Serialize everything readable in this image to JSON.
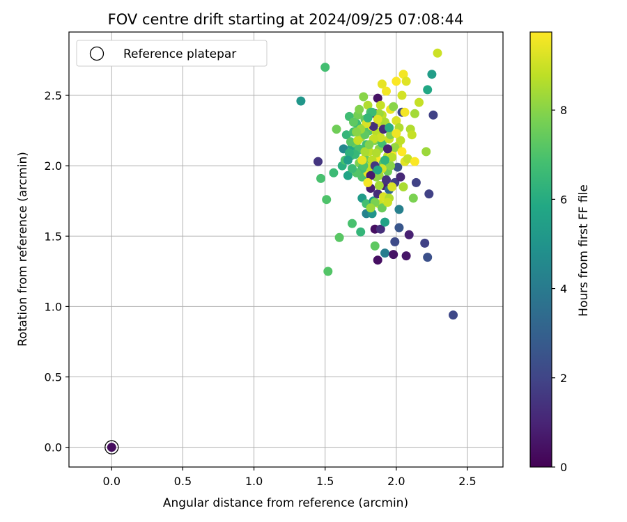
{
  "chart_data": {
    "type": "scatter",
    "title": "FOV centre drift starting at 2024/09/25 07:08:44",
    "xlabel": "Angular distance from reference (arcmin)",
    "ylabel": "Rotation from reference (arcmin)",
    "xlim": [
      -0.3,
      2.75
    ],
    "ylim": [
      -0.14,
      2.95
    ],
    "xticks": [
      0.0,
      0.5,
      1.0,
      1.5,
      2.0,
      2.5
    ],
    "yticks": [
      0.0,
      0.5,
      1.0,
      1.5,
      2.0,
      2.5
    ],
    "grid": true,
    "legend": {
      "position": "top-left",
      "entries": [
        "Reference platepar"
      ]
    },
    "colorbar": {
      "label": "Hours from first FF file",
      "colormap": "viridis",
      "range": [
        0,
        9.75
      ],
      "ticks": [
        0,
        2,
        4,
        6,
        8
      ]
    },
    "reference_point": {
      "x": 0.0,
      "y": 0.0,
      "c": 0.3
    },
    "points": [
      [
        1.33,
        2.46,
        5.1
      ],
      [
        1.5,
        2.7,
        6.8
      ],
      [
        1.45,
        2.03,
        1.5
      ],
      [
        1.47,
        1.91,
        6.9
      ],
      [
        1.51,
        1.76,
        7.0
      ],
      [
        1.52,
        1.25,
        7.1
      ],
      [
        1.56,
        1.95,
        6.6
      ],
      [
        1.6,
        1.49,
        7.2
      ],
      [
        1.58,
        2.26,
        7.6
      ],
      [
        1.62,
        2.0,
        6.1
      ],
      [
        1.63,
        2.12,
        4.5
      ],
      [
        1.64,
        2.04,
        6.9
      ],
      [
        1.65,
        2.22,
        6.4
      ],
      [
        1.66,
        1.93,
        5.7
      ],
      [
        1.67,
        2.35,
        6.7
      ],
      [
        1.68,
        2.07,
        6.3
      ],
      [
        1.69,
        2.14,
        5.8
      ],
      [
        1.69,
        1.59,
        6.9
      ],
      [
        1.7,
        2.24,
        6.8
      ],
      [
        1.71,
        2.16,
        7.4
      ],
      [
        1.72,
        2.3,
        6.6
      ],
      [
        1.73,
        2.11,
        6.2
      ],
      [
        1.73,
        2.36,
        7.7
      ],
      [
        1.74,
        2.4,
        7.9
      ],
      [
        1.74,
        2.02,
        7.8
      ],
      [
        1.75,
        2.2,
        8.4
      ],
      [
        1.75,
        1.53,
        6.4
      ],
      [
        1.76,
        1.92,
        7.0
      ],
      [
        1.76,
        1.77,
        5.3
      ],
      [
        1.77,
        2.49,
        8.0
      ],
      [
        1.77,
        2.27,
        8.1
      ],
      [
        1.78,
        2.05,
        7.5
      ],
      [
        1.78,
        2.33,
        7.4
      ],
      [
        1.79,
        1.73,
        6.8
      ],
      [
        1.79,
        2.15,
        6.7
      ],
      [
        1.79,
        1.66,
        4.3
      ],
      [
        1.8,
        2.43,
        8.6
      ],
      [
        1.8,
        1.95,
        9.4
      ],
      [
        1.81,
        2.1,
        8.8
      ],
      [
        1.81,
        2.25,
        7.1
      ],
      [
        1.82,
        1.84,
        0.8
      ],
      [
        1.82,
        2.38,
        6.9
      ],
      [
        1.82,
        2.0,
        7.0
      ],
      [
        1.83,
        1.66,
        5.0
      ],
      [
        1.83,
        2.28,
        9.5
      ],
      [
        1.84,
        1.75,
        5.3
      ],
      [
        1.84,
        1.95,
        5.6
      ],
      [
        1.85,
        2.37,
        1.0
      ],
      [
        1.85,
        2.18,
        7.8
      ],
      [
        1.85,
        1.55,
        0.4
      ],
      [
        1.85,
        1.43,
        7.3
      ],
      [
        1.86,
        2.05,
        9.7
      ],
      [
        1.86,
        2.24,
        8.7
      ],
      [
        1.87,
        1.8,
        1.2
      ],
      [
        1.87,
        1.33,
        0.4
      ],
      [
        1.87,
        2.48,
        0.5
      ],
      [
        1.88,
        2.12,
        8.0
      ],
      [
        1.88,
        1.73,
        9.0
      ],
      [
        1.88,
        1.93,
        8.3
      ],
      [
        1.89,
        2.3,
        9.1
      ],
      [
        1.89,
        1.55,
        1.3
      ],
      [
        1.9,
        2.58,
        9.4
      ],
      [
        1.9,
        2.36,
        8.8
      ],
      [
        1.9,
        2.16,
        6.8
      ],
      [
        1.91,
        1.86,
        0.9
      ],
      [
        1.91,
        2.02,
        7.2
      ],
      [
        1.91,
        1.78,
        9.2
      ],
      [
        1.92,
        1.6,
        5.6
      ],
      [
        1.92,
        1.38,
        4.1
      ],
      [
        1.93,
        2.53,
        9.6
      ],
      [
        1.93,
        2.29,
        9.3
      ],
      [
        1.94,
        2.07,
        8.8
      ],
      [
        1.94,
        1.96,
        7.6
      ],
      [
        1.95,
        1.83,
        3.2
      ],
      [
        1.95,
        1.77,
        8.6
      ],
      [
        1.95,
        2.19,
        9.0
      ],
      [
        1.96,
        2.4,
        9.5
      ],
      [
        1.97,
        2.08,
        9.8
      ],
      [
        1.98,
        1.37,
        0.5
      ],
      [
        1.98,
        2.42,
        8.0
      ],
      [
        1.99,
        1.46,
        2.2
      ],
      [
        1.99,
        1.88,
        1.8
      ],
      [
        2.0,
        2.6,
        9.7
      ],
      [
        2.0,
        2.32,
        9.2
      ],
      [
        2.01,
        1.99,
        2.5
      ],
      [
        2.01,
        2.14,
        9.0
      ],
      [
        2.02,
        2.27,
        8.6
      ],
      [
        2.02,
        1.69,
        4.2
      ],
      [
        2.02,
        1.56,
        2.6
      ],
      [
        2.03,
        1.92,
        1.1
      ],
      [
        2.03,
        2.18,
        8.8
      ],
      [
        2.04,
        2.5,
        9.1
      ],
      [
        2.04,
        2.38,
        2.1
      ],
      [
        2.05,
        2.65,
        9.6
      ],
      [
        2.05,
        1.85,
        8.5
      ],
      [
        2.06,
        2.03,
        9.3
      ],
      [
        2.07,
        1.36,
        0.6
      ],
      [
        2.07,
        2.6,
        9.3
      ],
      [
        2.08,
        2.05,
        8.9
      ],
      [
        2.09,
        1.51,
        0.9
      ],
      [
        2.1,
        2.26,
        8.6
      ],
      [
        2.11,
        2.22,
        8.9
      ],
      [
        2.12,
        1.77,
        7.8
      ],
      [
        2.13,
        2.37,
        8.4
      ],
      [
        2.13,
        2.03,
        9.7
      ],
      [
        2.14,
        1.88,
        1.9
      ],
      [
        2.16,
        2.45,
        8.9
      ],
      [
        2.2,
        1.45,
        1.9
      ],
      [
        2.21,
        2.1,
        8.3
      ],
      [
        2.22,
        2.54,
        5.8
      ],
      [
        2.22,
        1.35,
        2.4
      ],
      [
        2.23,
        1.8,
        1.9
      ],
      [
        2.25,
        2.65,
        5.4
      ],
      [
        2.26,
        2.36,
        1.9
      ],
      [
        2.29,
        2.8,
        9.0
      ],
      [
        2.4,
        0.94,
        2.1
      ],
      [
        1.97,
        2.06,
        8.7
      ],
      [
        1.99,
        2.13,
        8.2
      ],
      [
        1.96,
        2.22,
        7.9
      ],
      [
        1.92,
        2.31,
        8.5
      ],
      [
        1.89,
        2.2,
        9.0
      ],
      [
        1.86,
        2.09,
        8.6
      ],
      [
        1.84,
        2.19,
        8.9
      ],
      [
        1.83,
        2.04,
        8.7
      ],
      [
        1.81,
        1.99,
        8.8
      ],
      [
        1.78,
        2.22,
        7.3
      ],
      [
        1.76,
        1.98,
        6.8
      ],
      [
        1.74,
        2.12,
        6.9
      ],
      [
        1.72,
        1.95,
        7.1
      ],
      [
        1.71,
        2.08,
        6.5
      ],
      [
        1.7,
        2.31,
        7.3
      ],
      [
        1.68,
        2.17,
        7.2
      ],
      [
        1.67,
        2.09,
        6.2
      ],
      [
        1.86,
        1.92,
        8.1
      ],
      [
        1.88,
        1.86,
        8.4
      ],
      [
        1.9,
        1.98,
        9.1
      ],
      [
        1.93,
        1.9,
        1.4
      ],
      [
        1.85,
        2.0,
        1.6
      ],
      [
        1.82,
        1.93,
        0.7
      ],
      [
        1.8,
        1.88,
        9.6
      ],
      [
        1.94,
        2.12,
        0.9
      ],
      [
        1.91,
        2.26,
        1.2
      ],
      [
        1.88,
        2.37,
        8.3
      ],
      [
        1.84,
        2.28,
        1.3
      ],
      [
        1.79,
        2.3,
        9.2
      ],
      [
        1.75,
        2.26,
        8.3
      ],
      [
        1.73,
        2.18,
        8.9
      ],
      [
        1.77,
        2.0,
        7.0
      ],
      [
        1.96,
        2.0,
        8.0
      ],
      [
        2.0,
        2.23,
        9.5
      ],
      [
        1.89,
        2.43,
        8.9
      ],
      [
        1.87,
        2.33,
        9.3
      ],
      [
        1.83,
        2.38,
        6.6
      ],
      [
        1.8,
        2.34,
        6.4
      ],
      [
        1.78,
        2.1,
        8.5
      ],
      [
        1.85,
        1.74,
        7.8
      ],
      [
        1.9,
        1.7,
        7.5
      ],
      [
        1.97,
        1.85,
        9.2
      ],
      [
        1.94,
        1.74,
        9.0
      ],
      [
        1.82,
        1.7,
        8.3
      ],
      [
        1.87,
        1.97,
        5.9
      ],
      [
        1.92,
        2.04,
        6.3
      ],
      [
        1.95,
        2.27,
        6.1
      ],
      [
        1.81,
        2.15,
        7.9
      ],
      [
        1.76,
        2.04,
        9.4
      ],
      [
        1.72,
        2.24,
        8.0
      ],
      [
        1.69,
        1.98,
        6.6
      ],
      [
        1.66,
        2.04,
        5.4
      ],
      [
        2.04,
        2.1,
        9.9
      ],
      [
        2.06,
        2.38,
        9.6
      ]
    ]
  }
}
